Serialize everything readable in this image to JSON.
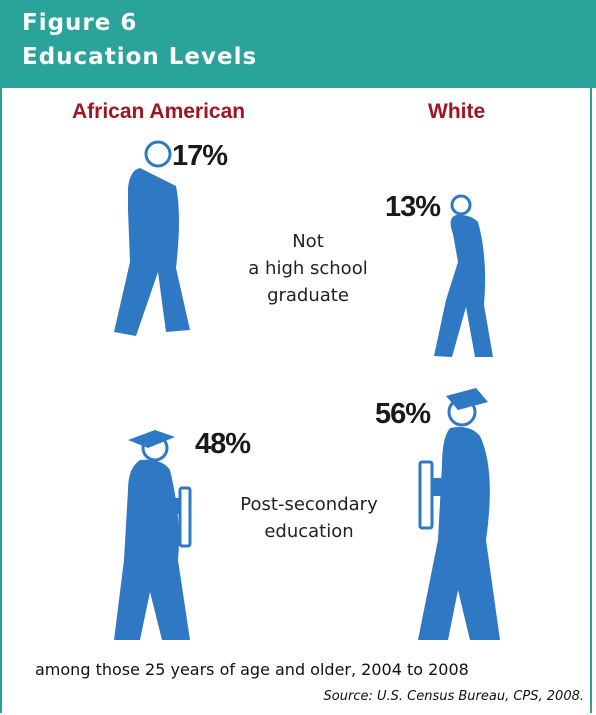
{
  "header": {
    "line1": "Figure 6",
    "line2": "Education  Levels"
  },
  "groups": [
    "African American",
    "White"
  ],
  "categories": [
    "Not a high school graduate",
    "Post-secondary education"
  ],
  "category_labels": {
    "not_hs": [
      "Not",
      "a high school",
      "graduate"
    ],
    "post_secondary": [
      "Post-secondary",
      "education"
    ]
  },
  "chart_data": {
    "type": "bar",
    "title": "Education  Levels",
    "categories": [
      "Not a high school graduate",
      "Post-secondary education"
    ],
    "series": [
      {
        "name": "African American",
        "values": [
          17,
          48
        ]
      },
      {
        "name": "White",
        "values": [
          13,
          56
        ]
      }
    ],
    "value_labels": [
      [
        "17%",
        "48%"
      ],
      [
        "13%",
        "56%"
      ]
    ],
    "unit": "%"
  },
  "note": "among those 25 years of age and older, 2004 to 2008",
  "source": "Source: U.S. Census Bureau, CPS, 2008.",
  "colors": {
    "header": "#2aa39a",
    "figure": "#2f78c4",
    "group_label": "#a11523"
  }
}
